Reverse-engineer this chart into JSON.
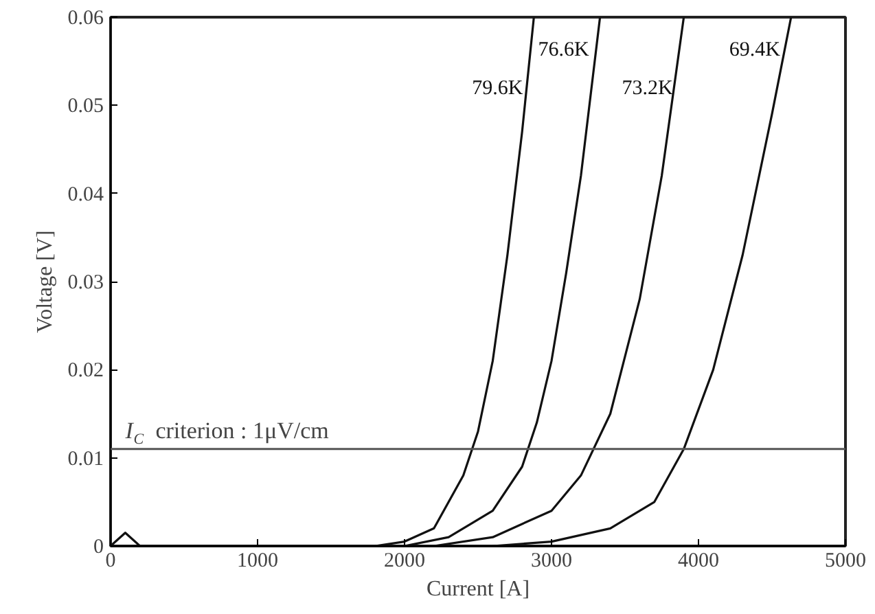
{
  "chart_data": {
    "type": "line",
    "xlabel": "Current [A]",
    "ylabel": "Voltage [V]",
    "xlim": [
      0,
      5000
    ],
    "xticks": [
      0,
      1000,
      2000,
      3000,
      4000,
      5000
    ],
    "ylim": [
      0,
      0.06
    ],
    "yticks": [
      0,
      0.01,
      0.02,
      0.03,
      0.04,
      0.05,
      0.06
    ],
    "grid": false,
    "legend": false,
    "marker": "none",
    "line_style": "solid",
    "series": [
      {
        "name": "79.6K",
        "color": "#111111",
        "x": [
          0,
          100,
          200,
          1000,
          1800,
          2000,
          2200,
          2400,
          2500,
          2600,
          2700,
          2800,
          2880
        ],
        "values": [
          0,
          0.0015,
          0,
          0,
          0,
          0.0005,
          0.002,
          0.008,
          0.013,
          0.021,
          0.033,
          0.047,
          0.06
        ]
      },
      {
        "name": "76.6K",
        "color": "#111111",
        "x": [
          2000,
          2300,
          2600,
          2800,
          2900,
          3000,
          3100,
          3200,
          3330
        ],
        "values": [
          0,
          0.001,
          0.004,
          0.009,
          0.014,
          0.021,
          0.031,
          0.042,
          0.06
        ]
      },
      {
        "name": "73.2K",
        "color": "#111111",
        "x": [
          2200,
          2600,
          3000,
          3200,
          3400,
          3600,
          3750,
          3900
        ],
        "values": [
          0,
          0.001,
          0.004,
          0.008,
          0.015,
          0.028,
          0.042,
          0.06
        ]
      },
      {
        "name": "69.4K",
        "color": "#111111",
        "x": [
          2600,
          3000,
          3400,
          3700,
          3900,
          4100,
          4300,
          4500,
          4630
        ],
        "values": [
          0,
          0.0005,
          0.002,
          0.005,
          0.011,
          0.02,
          0.033,
          0.049,
          0.06
        ]
      }
    ],
    "ref_lines": [
      {
        "axis": "y",
        "value": 0.011,
        "label": "I$_{C}$ criterion : 1μV/cm",
        "color": "#555555"
      }
    ]
  }
}
